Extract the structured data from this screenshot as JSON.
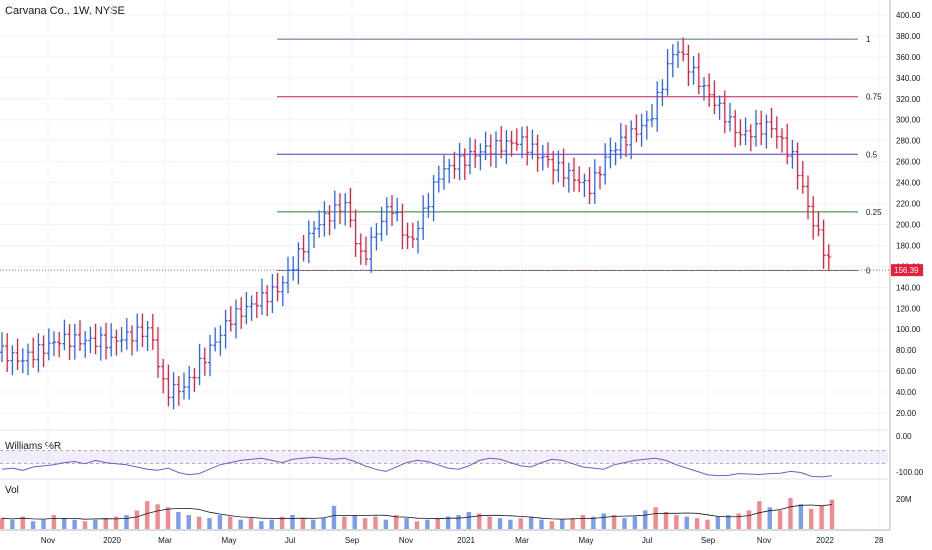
{
  "header": {
    "title": "Carvana Co., 1W, NYSE"
  },
  "indicators": {
    "williams_label": "Williams %R",
    "volume_label": "Vol"
  },
  "colors": {
    "up": "#2962ff",
    "down": "#e91e3a",
    "vol_up": "#7c9de8",
    "vol_down": "#ef8a8f",
    "wr_line": "#7e57c2",
    "wr_band": "rgba(126,87,194,0.10)"
  },
  "chart_data": {
    "type": "ohlc",
    "price_axis": {
      "ticks": [
        "400.00",
        "380.00",
        "360.00",
        "340.00",
        "320.00",
        "300.00",
        "280.00",
        "260.00",
        "240.00",
        "220.00",
        "200.00",
        "180.00",
        "160.00",
        "140.00",
        "120.00",
        "100.00",
        "80.00",
        "60.00",
        "40.00",
        "20.00"
      ],
      "range": [
        20,
        400
      ]
    },
    "time_axis": {
      "labels": [
        "Nov",
        "2020",
        "Mar",
        "May",
        "Jul",
        "Sep",
        "Nov",
        "2021",
        "Mar",
        "May",
        "Jul",
        "Sep",
        "Nov",
        "2022",
        "28"
      ]
    },
    "last_price": "156.39",
    "fib_levels": [
      {
        "label": "1",
        "price": 377,
        "color": "#5b6b8c"
      },
      {
        "label": "0.75",
        "price": 322,
        "color": "#c2185b"
      },
      {
        "label": "0.5",
        "price": 267,
        "color": "#5e35b1"
      },
      {
        "label": "0.25",
        "price": 212,
        "color": "#2e7d32"
      },
      {
        "label": "0",
        "price": 156,
        "color": "#787b86"
      }
    ],
    "williams_axis": {
      "ticks": [
        "0.00",
        "-100.00"
      ]
    },
    "williams_r": [
      -60,
      -55,
      -65,
      -50,
      -45,
      -40,
      -30,
      -25,
      -35,
      -20,
      -30,
      -35,
      -40,
      -50,
      -60,
      -65,
      -55,
      -75,
      -85,
      -80,
      -60,
      -40,
      -30,
      -20,
      -15,
      -10,
      -20,
      -30,
      -15,
      -10,
      -5,
      -10,
      -15,
      -10,
      -25,
      -45,
      -60,
      -70,
      -50,
      -30,
      -20,
      -25,
      -40,
      -55,
      -60,
      -45,
      -20,
      -10,
      -15,
      -30,
      -45,
      -50,
      -30,
      -15,
      -20,
      -35,
      -50,
      -55,
      -60,
      -40,
      -30,
      -20,
      -15,
      -10,
      -20,
      -40,
      -55,
      -70,
      -85,
      -90,
      -88,
      -80,
      -82,
      -84,
      -80,
      -78,
      -70,
      -75,
      -92,
      -95,
      -90
    ],
    "volume_axis": {
      "ticks": [
        "20M"
      ]
    },
    "volume": [
      7,
      6,
      8,
      5,
      6,
      9,
      7,
      6,
      5,
      6,
      7,
      8,
      9,
      12,
      18,
      16,
      14,
      11,
      9,
      8,
      7,
      9,
      8,
      6,
      7,
      5,
      6,
      8,
      9,
      7,
      6,
      7,
      15,
      8,
      9,
      7,
      8,
      6,
      9,
      7,
      5,
      6,
      7,
      8,
      9,
      11,
      10,
      8,
      7,
      6,
      7,
      8,
      6,
      5,
      6,
      7,
      9,
      8,
      10,
      9,
      7,
      8,
      12,
      14,
      11,
      9,
      8,
      7,
      6,
      8,
      9,
      10,
      12,
      18,
      14,
      12,
      20,
      16,
      13,
      15,
      19
    ],
    "volume_up": [
      false,
      true,
      false,
      true,
      true,
      false,
      true,
      true,
      false,
      true,
      false,
      false,
      true,
      false,
      false,
      false,
      false,
      true,
      true,
      false,
      true,
      true,
      false,
      true,
      false,
      true,
      true,
      false,
      true,
      false,
      true,
      true,
      true,
      false,
      true,
      false,
      false,
      true,
      false,
      true,
      false,
      true,
      false,
      true,
      true,
      true,
      false,
      false,
      true,
      true,
      false,
      true,
      true,
      false,
      true,
      false,
      false,
      true,
      true,
      false,
      true,
      true,
      true,
      false,
      false,
      false,
      true,
      false,
      false,
      true,
      true,
      false,
      false,
      false,
      true,
      false,
      false,
      true,
      false,
      false,
      false
    ]
  }
}
